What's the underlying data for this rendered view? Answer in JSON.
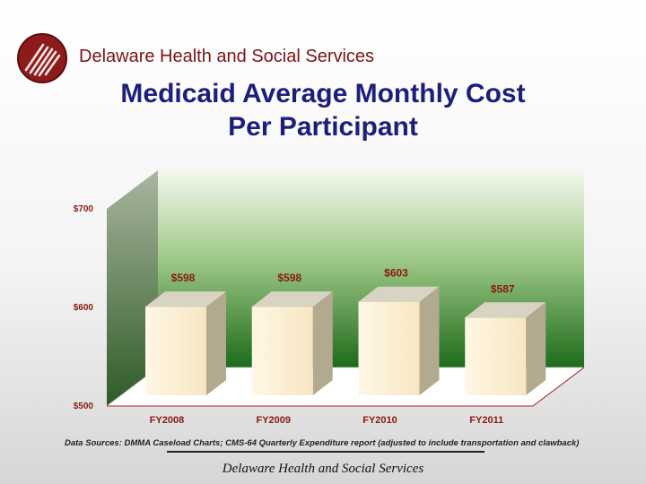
{
  "header": {
    "org_name": "Delaware Health and Social Services",
    "logo": "dhss-logo"
  },
  "title": {
    "line1": "Medicaid Average Monthly Cost",
    "line2": "Per Participant"
  },
  "chart_data": {
    "type": "bar",
    "title": "Medicaid Average Monthly Cost Per Participant",
    "categories": [
      "FY2008",
      "FY2009",
      "FY2010",
      "FY2011"
    ],
    "values": [
      598,
      598,
      603,
      587
    ],
    "value_labels": [
      "$598",
      "$598",
      "$603",
      "$587"
    ],
    "y_ticks": [
      500,
      600,
      700
    ],
    "y_tick_labels": [
      "$500",
      "$600",
      "$700"
    ],
    "ylim": [
      500,
      700
    ],
    "xlabel": "",
    "ylabel": "",
    "style": "3d",
    "colors": {
      "bar_front": "#fbeed2",
      "bar_side": "#b2a98f",
      "bar_top": "#d9d3c3",
      "wall_top": "#f2f7ec",
      "wall_bottom": "#1f6b1c",
      "side_wall": "#5a7a4e",
      "floor": "#ffffff",
      "label": "#8a1a0e"
    }
  },
  "source_note": "Data Sources: DMMA Caseload Charts; CMS-64 Quarterly Expenditure report (adjusted to include transportation and clawback)",
  "footer": {
    "text": "Delaware Health and Social Services"
  }
}
